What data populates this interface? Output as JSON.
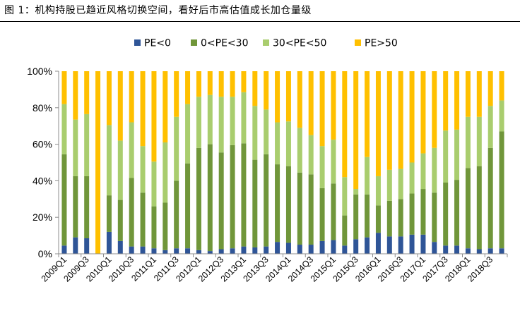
{
  "title": "图 1：机构持股已趋近风格切换空间，看好后市高估值成长加仓量级",
  "colors": {
    "s1": "#2f5597",
    "s2": "#70963a",
    "s3": "#a9cd6e",
    "s4": "#ffc000",
    "axis": "#8c8c8c"
  },
  "chart_data": {
    "type": "bar",
    "stacked": true,
    "percent": true,
    "legend_position": "top",
    "grid": false,
    "ylim": [
      0,
      100
    ],
    "yticks": [
      "0%",
      "20%",
      "40%",
      "60%",
      "80%",
      "100%"
    ],
    "x_labels_shown": [
      "2009Q1",
      "2009Q3",
      "2010Q1",
      "2010Q3",
      "2011Q1",
      "2011Q3",
      "2012Q1",
      "2012Q3",
      "2013Q1",
      "2013Q3",
      "2014Q1",
      "2014Q3",
      "2015Q1",
      "2015Q3",
      "2016Q1",
      "2016Q3",
      "2017Q1",
      "2017Q3",
      "2018Q1",
      "2018Q3"
    ],
    "categories": [
      "2009Q1",
      "2009Q2",
      "2009Q3",
      "2009Q4",
      "2010Q1",
      "2010Q2",
      "2010Q3",
      "2010Q4",
      "2011Q1",
      "2011Q2",
      "2011Q3",
      "2011Q4",
      "2012Q1",
      "2012Q2",
      "2012Q3",
      "2012Q4",
      "2013Q1",
      "2013Q2",
      "2013Q3",
      "2013Q4",
      "2014Q1",
      "2014Q2",
      "2014Q3",
      "2014Q4",
      "2015Q1",
      "2015Q2",
      "2015Q3",
      "2015Q4",
      "2016Q1",
      "2016Q2",
      "2016Q3",
      "2016Q4",
      "2017Q1",
      "2017Q2",
      "2017Q3",
      "2017Q4",
      "2018Q1",
      "2018Q2",
      "2018Q3",
      "2018Q4"
    ],
    "series": [
      {
        "name": "PE<0",
        "values": [
          4.5,
          9,
          8.5,
          0,
          12,
          7,
          4,
          4,
          3,
          2,
          3,
          3,
          2,
          1.5,
          2.5,
          3,
          4,
          3.5,
          4,
          6.5,
          6,
          5,
          5,
          7,
          7.5,
          4.5,
          8,
          9,
          11.5,
          9.5,
          9.5,
          10.5,
          10.5,
          6.5,
          4.5,
          4.5,
          3,
          2.5,
          3,
          3
        ]
      },
      {
        "name": "0<PE<30",
        "values": [
          50,
          33.5,
          34,
          0,
          20,
          22.5,
          37.5,
          29.5,
          23,
          26,
          37,
          46.5,
          56,
          58.5,
          53,
          56.5,
          56.5,
          48,
          50.5,
          42.5,
          42,
          39.5,
          38.5,
          29,
          31,
          16.5,
          24.5,
          23.5,
          15,
          19.5,
          20.5,
          22.5,
          25,
          27,
          34.5,
          36,
          44,
          45.5,
          55,
          64
        ]
      },
      {
        "name": "30<PE<50",
        "values": [
          27.5,
          31,
          34,
          0,
          38.5,
          32.5,
          30.5,
          25.5,
          24.5,
          33,
          35,
          32.5,
          28,
          27,
          30.5,
          26.5,
          28,
          29.5,
          24.5,
          23,
          24.5,
          24.5,
          21.5,
          23,
          24,
          21,
          3,
          20.5,
          16,
          17,
          16.5,
          17,
          19.5,
          24.5,
          28.5,
          27.5,
          28,
          27,
          23,
          17
        ]
      },
      {
        "name": "PE>50",
        "values": [
          18,
          26.5,
          23.5,
          100,
          29.5,
          38,
          28,
          41,
          49.5,
          39,
          25,
          18,
          14,
          13,
          14,
          14,
          11.5,
          19,
          21,
          28,
          27.5,
          31,
          35,
          41,
          37.5,
          58,
          64.5,
          47,
          57.5,
          54,
          53.5,
          50,
          45,
          42,
          32.5,
          32,
          25,
          25,
          19,
          16
        ]
      }
    ]
  }
}
